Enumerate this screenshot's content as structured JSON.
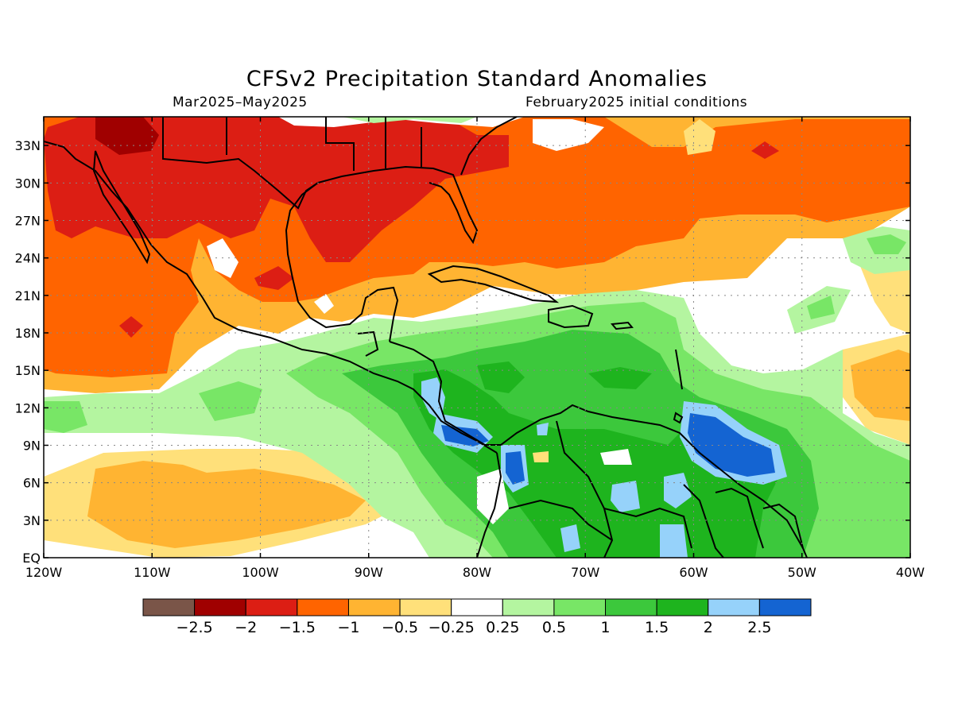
{
  "title": "CFSv2 Precipitation Standard Anomalies",
  "subtitle_left": "Mar2025–May2025",
  "subtitle_right": "February2025 initial conditions",
  "map": {
    "lon_range": [
      -120,
      -40
    ],
    "lat_range": [
      0,
      35
    ],
    "lat_ticks": [
      {
        "value": 33,
        "label": "33N"
      },
      {
        "value": 30,
        "label": "30N"
      },
      {
        "value": 27,
        "label": "27N"
      },
      {
        "value": 24,
        "label": "24N"
      },
      {
        "value": 21,
        "label": "21N"
      },
      {
        "value": 18,
        "label": "18N"
      },
      {
        "value": 15,
        "label": "15N"
      },
      {
        "value": 12,
        "label": "12N"
      },
      {
        "value": 9,
        "label": "9N"
      },
      {
        "value": 6,
        "label": "6N"
      },
      {
        "value": 3,
        "label": "3N"
      },
      {
        "value": 0,
        "label": "EQ"
      }
    ],
    "lon_ticks": [
      {
        "value": -120,
        "label": "120W"
      },
      {
        "value": -110,
        "label": "110W"
      },
      {
        "value": -100,
        "label": "100W"
      },
      {
        "value": -90,
        "label": "90W"
      },
      {
        "value": -80,
        "label": "80W"
      },
      {
        "value": -70,
        "label": "70W"
      },
      {
        "value": -60,
        "label": "60W"
      },
      {
        "value": -50,
        "label": "50W"
      },
      {
        "value": -40,
        "label": "40W"
      }
    ],
    "grid_lines": "dotted"
  },
  "colorbar": {
    "colors": [
      "#7a5548",
      "#a00000",
      "#dc1e14",
      "#ff6400",
      "#ffb432",
      "#ffe07a",
      "#ffffff",
      "#b4f5a0",
      "#78e666",
      "#3cc83c",
      "#1eb41e",
      "#96d2fa",
      "#1464d2"
    ],
    "labels": [
      "−2.5",
      "−2",
      "−1.5",
      "−1",
      "−0.5",
      "−0.25",
      "0.25",
      "0.5",
      "1",
      "1.5",
      "2",
      "2.5"
    ]
  }
}
